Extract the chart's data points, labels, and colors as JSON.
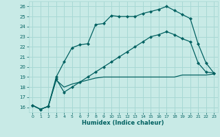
{
  "xlabel": "Humidex (Indice chaleur)",
  "bg_color": "#c8eae6",
  "grid_color": "#a8d8d4",
  "line_color": "#006060",
  "xlim": [
    -0.5,
    23.5
  ],
  "ylim": [
    15.5,
    26.5
  ],
  "yticks": [
    16,
    17,
    18,
    19,
    20,
    21,
    22,
    23,
    24,
    25,
    26
  ],
  "xticks": [
    0,
    1,
    2,
    3,
    4,
    5,
    6,
    7,
    8,
    9,
    10,
    11,
    12,
    13,
    14,
    15,
    16,
    17,
    18,
    19,
    20,
    21,
    22,
    23
  ],
  "line1_x": [
    0,
    1,
    2,
    3,
    4,
    5,
    6,
    7,
    8,
    9,
    10,
    11,
    12,
    13,
    14,
    15,
    16,
    17,
    18,
    19,
    20,
    21,
    22,
    23
  ],
  "line1_y": [
    16.2,
    15.8,
    16.1,
    19.0,
    20.5,
    21.9,
    22.2,
    22.3,
    24.2,
    24.3,
    25.1,
    25.0,
    25.0,
    25.0,
    25.3,
    25.5,
    25.7,
    26.0,
    25.6,
    25.2,
    24.8,
    22.3,
    20.4,
    19.4
  ],
  "line2_x": [
    0,
    1,
    2,
    3,
    4,
    5,
    6,
    7,
    8,
    9,
    10,
    11,
    12,
    13,
    14,
    15,
    16,
    17,
    18,
    19,
    20,
    21,
    22,
    23
  ],
  "line2_y": [
    16.2,
    15.8,
    16.1,
    18.8,
    17.5,
    18.0,
    18.5,
    19.0,
    19.5,
    20.0,
    20.5,
    21.0,
    21.5,
    22.0,
    22.5,
    23.0,
    23.2,
    23.5,
    23.2,
    22.8,
    22.5,
    20.4,
    19.5,
    19.4
  ],
  "line3_x": [
    0,
    1,
    2,
    3,
    4,
    5,
    6,
    7,
    8,
    9,
    10,
    11,
    12,
    13,
    14,
    15,
    16,
    17,
    18,
    19,
    20,
    21,
    22,
    23
  ],
  "line3_y": [
    16.2,
    15.8,
    16.1,
    18.7,
    18.0,
    18.3,
    18.5,
    18.7,
    18.9,
    19.0,
    19.0,
    19.0,
    19.0,
    19.0,
    19.0,
    19.0,
    19.0,
    19.0,
    19.0,
    19.2,
    19.2,
    19.2,
    19.2,
    19.3
  ]
}
